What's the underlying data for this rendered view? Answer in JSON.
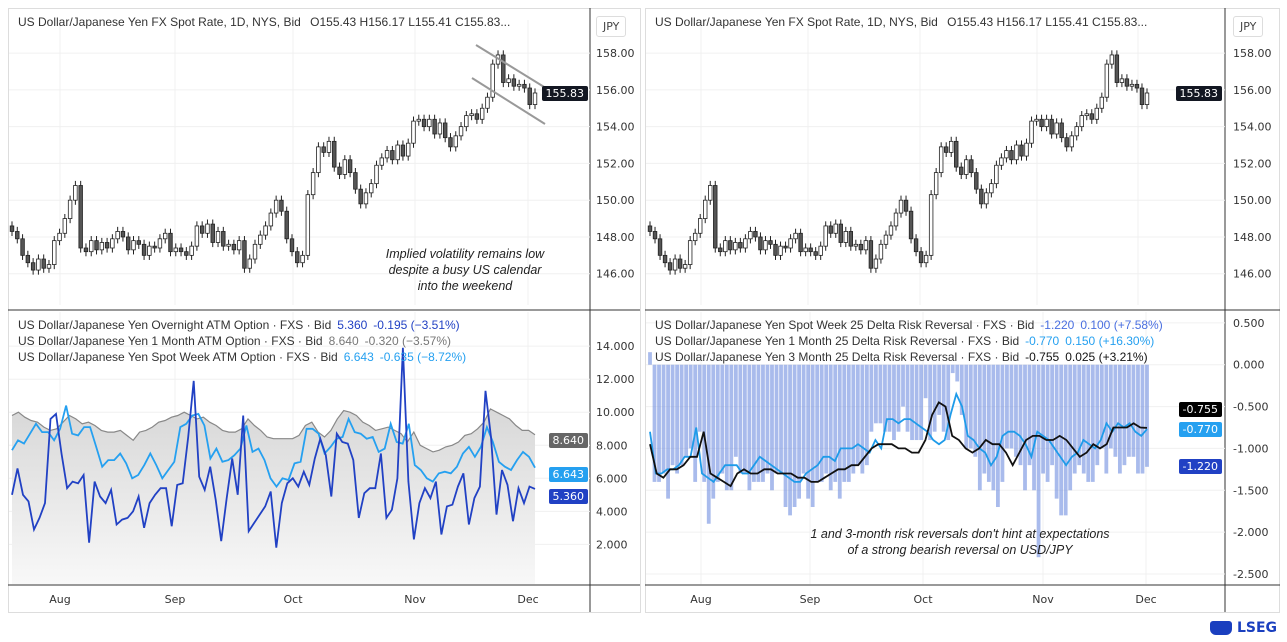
{
  "left_top": {
    "title": "US Dollar/Japanese Yen FX Spot Rate, 1D, NYS, Bid",
    "ohlc": "O155.43  H156.17  L155.41  C155.83...",
    "currency": "JPY",
    "last_price": "155.83",
    "annotation": [
      "Implied volatility remains low",
      "despite a busy US calendar",
      "into the weekend"
    ]
  },
  "right_top": {
    "title": "US Dollar/Japanese Yen FX Spot Rate, 1D, NYS, Bid",
    "ohlc": "O155.43  H156.17  L155.41  C155.83...",
    "currency": "JPY",
    "last_price": "155.83"
  },
  "left_bottom": {
    "legend": [
      {
        "label": "US Dollar/Japanese Yen Overnight ATM Option · FXS · Bid",
        "value": "5.360",
        "change": "-0.195 (−3.51%)",
        "color": "#2141c4"
      },
      {
        "label": "US Dollar/Japanese Yen 1 Month ATM Option · FXS · Bid",
        "value": "8.640",
        "change": "-0.320 (−3.57%)",
        "color": "#777777"
      },
      {
        "label": "US Dollar/Japanese Yen Spot Week ATM Option · FXS · Bid",
        "value": "6.643",
        "change": "-0.635 (−8.72%)",
        "color": "#25a0f0"
      }
    ]
  },
  "right_bottom": {
    "legend": [
      {
        "label": "US Dollar/Japanese Yen Spot Week 25 Delta Risk Reversal · FXS · Bid",
        "value": "-1.220",
        "change": "0.100 (+7.58%)",
        "color": "#4a6fe0"
      },
      {
        "label": "US Dollar/Japanese Yen 1 Month 25 Delta Risk Reversal · FXS · Bid",
        "value": "-0.770",
        "change": "0.150 (+16.30%)",
        "color": "#25a0f0"
      },
      {
        "label": "US Dollar/Japanese Yen 3 Month 25 Delta Risk Reversal · FXS · Bid",
        "value": "-0.755",
        "change": "0.025 (+3.21%)",
        "color": "#111111"
      }
    ],
    "annotation": [
      "1 and 3-month risk reversals don't hint at expectations",
      "of a strong bearish reversal on USD/JPY"
    ]
  },
  "x_labels": [
    "Aug",
    "Sep",
    "Oct",
    "Nov",
    "Dec"
  ],
  "brand": "LSEG",
  "chart_data": [
    {
      "type": "candlestick",
      "title": "US Dollar/Japanese Yen FX Spot Rate, 1D, NYS, Bid",
      "ylim": [
        145,
        159
      ],
      "y_ticks": [
        "158.00",
        "156.00",
        "154.00",
        "152.00",
        "150.00",
        "148.00",
        "146.00"
      ],
      "close": [
        148.3,
        147.9,
        147.0,
        146.6,
        146.2,
        146.8,
        146.3,
        146.5,
        147.8,
        148.2,
        149.0,
        150.0,
        150.8,
        147.4,
        147.2,
        147.8,
        147.3,
        147.7,
        147.4,
        147.9,
        148.3,
        148.0,
        147.3,
        147.8,
        147.6,
        147.0,
        147.5,
        147.4,
        147.9,
        148.2,
        147.2,
        147.4,
        147.2,
        147.0,
        147.5,
        148.6,
        148.2,
        148.7,
        147.7,
        148.3,
        147.5,
        147.6,
        147.3,
        147.8,
        146.3,
        146.8,
        147.6,
        148.1,
        148.6,
        149.3,
        150.0,
        149.4,
        147.9,
        147.2,
        146.6,
        147.0,
        150.3,
        151.5,
        152.9,
        152.6,
        153.2,
        151.8,
        151.4,
        152.2,
        151.5,
        150.6,
        149.8,
        150.4,
        150.9,
        151.9,
        152.3,
        152.7,
        152.2,
        153.0,
        152.4,
        153.1,
        154.3,
        154.4,
        154.0,
        154.4,
        153.6,
        154.2,
        153.4,
        152.9,
        153.5,
        154.0,
        154.6,
        154.7,
        154.4,
        155.0,
        155.6,
        157.4,
        157.9,
        156.4,
        156.6,
        156.2,
        156.3,
        156.1,
        155.2,
        155.83
      ]
    },
    {
      "type": "line",
      "ylim": [
        0,
        15
      ],
      "y_ticks": [
        "14.000",
        "12.000",
        "10.000",
        "8.000",
        "6.000",
        "4.000",
        "2.000"
      ],
      "series": [
        {
          "name": "US Dollar/Japanese Yen 1 Month ATM Option",
          "values": [
            9.8,
            10.0,
            9.7,
            9.5,
            9.4,
            9.1,
            8.9,
            9.0,
            9.4,
            9.8,
            9.6,
            9.3,
            9.4,
            9.2,
            8.9,
            8.8,
            8.8,
            8.9,
            8.6,
            8.3,
            8.8,
            8.9,
            9.1,
            9.4,
            9.5,
            9.7,
            9.8,
            10.0,
            9.8,
            9.6,
            9.7,
            9.4,
            9.2,
            8.9,
            8.8,
            8.8,
            9.0,
            9.6,
            9.2,
            8.9,
            8.5,
            8.4,
            8.4,
            8.4,
            8.4,
            8.6,
            9.2,
            9.4,
            8.8,
            8.5,
            8.9,
            9.6,
            10.1,
            10.0,
            9.8,
            9.4,
            9.2,
            8.9,
            9.0,
            9.1,
            8.9,
            8.7,
            8.2,
            8.8,
            8.0,
            7.8,
            7.6,
            7.7,
            7.9,
            8.0,
            8.2,
            8.6,
            8.7,
            9.0,
            9.4,
            10.2,
            10.0,
            9.8,
            9.6,
            9.2,
            8.9,
            8.9,
            8.64
          ]
        },
        {
          "name": "US Dollar/Japanese Yen Spot Week ATM Option",
          "values": [
            7.7,
            8.3,
            8.1,
            8.7,
            9.3,
            8.8,
            8.8,
            8.3,
            9.0,
            10.4,
            8.7,
            8.6,
            9.1,
            9.1,
            7.9,
            6.7,
            7.1,
            7.1,
            7.5,
            6.9,
            6.0,
            6.2,
            6.8,
            7.5,
            6.8,
            6.0,
            6.5,
            7.0,
            9.1,
            9.3,
            9.8,
            9.9,
            9.2,
            7.2,
            7.8,
            7.0,
            7.1,
            7.4,
            7.8,
            9.2,
            7.6,
            7.8,
            7.1,
            6.0,
            5.5,
            6.0,
            5.9,
            6.9,
            7.0,
            9.0,
            9.0,
            8.7,
            7.5,
            7.9,
            8.4,
            8.5,
            9.6,
            8.8,
            8.7,
            8.4,
            8.5,
            7.6,
            7.8,
            9.3,
            8.2,
            8.1,
            9.3,
            6.8,
            6.5,
            6.0,
            5.8,
            6.3,
            6.4,
            6.3,
            6.7,
            7.5,
            7.9,
            7.3,
            7.9,
            9.1,
            8.2,
            7.0,
            6.7,
            6.5,
            7.1,
            7.6,
            7.3,
            6.643
          ]
        },
        {
          "name": "US Dollar/Japanese Yen Overnight ATM Option",
          "values": [
            5.0,
            6.6,
            5.0,
            4.6,
            2.9,
            3.6,
            4.5,
            9.6,
            9.9,
            7.5,
            5.4,
            5.8,
            5.7,
            6.2,
            2.1,
            5.8,
            4.9,
            4.5,
            5.3,
            3.2,
            3.5,
            3.6,
            4.0,
            4.9,
            3.0,
            4.5,
            5.0,
            5.4,
            5.4,
            3.1,
            5.6,
            5.7,
            8.5,
            11.9,
            6.1,
            5.3,
            6.7,
            4.7,
            2.2,
            4.8,
            7.2,
            5.0,
            9.8,
            2.8,
            3.3,
            3.8,
            4.3,
            5.2,
            1.8,
            4.5,
            5.7,
            6.0,
            5.5,
            6.4,
            5.6,
            7.2,
            8.4,
            7.4,
            4.9,
            8.7,
            8.2,
            8.1,
            7.1,
            3.6,
            5.1,
            5.4,
            5.4,
            7.5,
            3.6,
            4.1,
            6.0,
            13.9,
            5.8,
            2.3,
            4.5,
            5.4,
            4.8,
            5.8,
            2.6,
            4.3,
            4.4,
            5.5,
            6.3,
            3.2,
            4.8,
            5.5,
            11.3,
            8.5,
            3.8,
            6.5,
            5.6,
            3.4,
            5.4,
            4.5,
            5.5,
            5.36
          ]
        }
      ]
    },
    {
      "type": "bar+line",
      "ylim": [
        -2.65,
        0.6
      ],
      "y_ticks": [
        "0.500",
        "0.000",
        "-0.500",
        "-1.000",
        "-1.500",
        "-2.000",
        "-2.500"
      ],
      "series": [
        {
          "name": "US Dollar/Japanese Yen Spot Week 25 Delta Risk Reversal",
          "type": "bar",
          "values": [
            0.15,
            -1.4,
            -1.4,
            -1.3,
            -1.6,
            -1.2,
            -1.3,
            -1.2,
            -1.1,
            -1.0,
            -1.4,
            -0.8,
            -1.4,
            -1.9,
            -1.6,
            -1.4,
            -1.3,
            -1.5,
            -1.5,
            -1.1,
            -1.3,
            -1.3,
            -1.5,
            -1.4,
            -1.4,
            -1.4,
            -1.3,
            -1.5,
            -1.3,
            -1.3,
            -1.7,
            -1.8,
            -1.7,
            -1.6,
            -1.3,
            -1.6,
            -1.7,
            -1.4,
            -1.4,
            -1.3,
            -1.5,
            -1.4,
            -1.6,
            -1.4,
            -1.4,
            -1.3,
            -1.2,
            -1.3,
            -1.2,
            -0.8,
            -0.7,
            -0.7,
            -0.8,
            -0.8,
            -0.9,
            -0.8,
            -0.5,
            -0.8,
            -0.9,
            -0.9,
            -0.9,
            -0.4,
            -0.9,
            -0.8,
            -0.6,
            -0.8,
            -0.9,
            -0.1,
            -0.2,
            -0.6,
            -1.0,
            -1.0,
            -1.1,
            -1.5,
            -1.3,
            -1.4,
            -1.5,
            -1.7,
            -1.4,
            -1.0,
            -1.0,
            -1.1,
            -1.2,
            -1.5,
            -1.2,
            -1.5,
            -2.3,
            -1.3,
            -1.4,
            -1.2,
            -1.6,
            -1.8,
            -1.8,
            -1.5,
            -1.3,
            -1.2,
            -1.3,
            -1.4,
            -1.4,
            -1.2,
            -1.0,
            -1.3,
            -1.0,
            -1.1,
            -1.3,
            -1.2,
            -1.1,
            -1.1,
            -1.3,
            -1.3,
            -1.22
          ]
        },
        {
          "name": "US Dollar/Japanese Yen 1 Month 25 Delta Risk Reversal",
          "type": "line",
          "values": [
            -0.8,
            -1.3,
            -1.3,
            -1.25,
            -1.25,
            -1.2,
            -1.1,
            -1.1,
            -0.75,
            -1.3,
            -1.35,
            -1.4,
            -1.3,
            -1.2,
            -1.2,
            -1.2,
            -1.3,
            -1.3,
            -1.2,
            -1.1,
            -1.15,
            -1.2,
            -1.25,
            -1.3,
            -1.35,
            -1.4,
            -1.4,
            -1.3,
            -1.25,
            -1.2,
            -1.1,
            -1.1,
            -1.15,
            -1.0,
            -1.0,
            -1.0,
            -0.95,
            -1.0,
            -1.05,
            -0.9,
            -1.0,
            -0.65,
            -0.65,
            -0.7,
            -0.65,
            -0.65,
            -0.7,
            -0.75,
            -0.8,
            -0.9,
            -0.95,
            -0.9,
            -0.6,
            -0.35,
            -0.5,
            -0.85,
            -0.9,
            -1.0,
            -1.05,
            -1.2,
            -1.1,
            -0.85,
            -0.8,
            -0.8,
            -0.85,
            -0.95,
            -1.1,
            -0.8,
            -0.85,
            -0.9,
            -1.0,
            -1.1,
            -1.2,
            -1.1,
            -1.05,
            -0.9,
            -0.95,
            -1.0,
            -0.9,
            -0.7,
            -0.8,
            -0.7,
            -0.75,
            -0.7,
            -0.8,
            -0.85,
            -0.77
          ]
        },
        {
          "name": "US Dollar/Japanese Yen 3 Month 25 Delta Risk Reversal",
          "type": "line",
          "values": [
            -0.95,
            -1.3,
            -1.35,
            -1.25,
            -1.25,
            -1.2,
            -1.1,
            -1.1,
            -0.8,
            -1.3,
            -1.35,
            -1.4,
            -1.45,
            -1.3,
            -1.25,
            -1.3,
            -1.3,
            -1.25,
            -1.25,
            -1.3,
            -1.3,
            -1.3,
            -1.35,
            -1.35,
            -1.4,
            -1.4,
            -1.35,
            -1.3,
            -1.25,
            -1.25,
            -1.2,
            -1.2,
            -1.1,
            -1.0,
            -0.95,
            -0.95,
            -0.95,
            -1.0,
            -1.0,
            -1.05,
            -1.05,
            -0.9,
            -0.6,
            -0.45,
            -0.5,
            -0.85,
            -0.9,
            -1.0,
            -1.05,
            -1.0,
            -0.9,
            -0.95,
            -0.95,
            -1.05,
            -1.2,
            -1.05,
            -0.9,
            -0.85,
            -0.85,
            -0.9,
            -0.9,
            -0.85,
            -0.9,
            -1.0,
            -1.1,
            -1.05,
            -0.95,
            -1.0,
            -0.95,
            -0.75,
            -0.75,
            -0.75,
            -0.7,
            -0.75,
            -0.755
          ]
        }
      ]
    }
  ]
}
